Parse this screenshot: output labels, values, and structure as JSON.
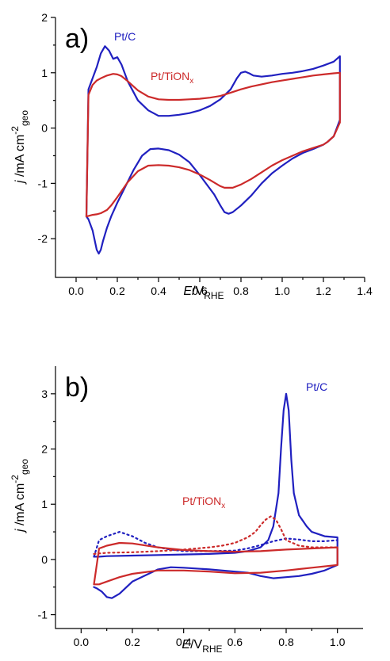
{
  "chart_data": [
    {
      "type": "line",
      "panel_label": "a)",
      "xlabel_main": "E",
      "xlabel_rest": "/V",
      "xlabel_sub": "RHE",
      "ylabel_main": "j",
      "ylabel_rest": " /mA cm",
      "ylabel_sup": "-2",
      "ylabel_sub": "geo",
      "xlim": [
        -0.1,
        1.4
      ],
      "ylim": [
        -2.7,
        2.0
      ],
      "xticks": [
        0.0,
        0.2,
        0.4,
        0.6,
        0.8,
        1.0,
        1.2,
        1.4
      ],
      "xtick_labels": [
        "0.0",
        "0.2",
        "0.4",
        "0.6",
        "0.8",
        "1.0",
        "1.2",
        "1.4"
      ],
      "yticks": [
        -2,
        -1,
        0,
        1,
        2
      ],
      "ytick_labels": [
        "-2",
        "-1",
        "0",
        "1",
        "2"
      ],
      "series": [
        {
          "name": "Pt/C",
          "name_sub": "",
          "color": "#2020c0",
          "dash": "solid",
          "x": [
            0.05,
            0.06,
            0.08,
            0.1,
            0.12,
            0.14,
            0.16,
            0.18,
            0.2,
            0.22,
            0.25,
            0.3,
            0.35,
            0.4,
            0.45,
            0.5,
            0.55,
            0.6,
            0.65,
            0.7,
            0.75,
            0.78,
            0.8,
            0.82,
            0.84,
            0.86,
            0.9,
            0.95,
            1.0,
            1.05,
            1.1,
            1.15,
            1.2,
            1.25,
            1.28,
            1.28,
            1.25,
            1.22,
            1.2,
            1.15,
            1.1,
            1.05,
            1.0,
            0.95,
            0.9,
            0.85,
            0.8,
            0.76,
            0.74,
            0.72,
            0.7,
            0.67,
            0.64,
            0.6,
            0.55,
            0.5,
            0.45,
            0.4,
            0.36,
            0.32,
            0.28,
            0.24,
            0.2,
            0.17,
            0.15,
            0.13,
            0.12,
            0.11,
            0.1,
            0.08,
            0.06,
            0.05
          ],
          "y": [
            -1.6,
            0.7,
            0.9,
            1.1,
            1.35,
            1.48,
            1.4,
            1.25,
            1.28,
            1.15,
            0.85,
            0.5,
            0.32,
            0.22,
            0.22,
            0.24,
            0.27,
            0.32,
            0.4,
            0.52,
            0.7,
            0.9,
            1.0,
            1.02,
            0.99,
            0.95,
            0.93,
            0.95,
            0.98,
            1.0,
            1.03,
            1.07,
            1.13,
            1.2,
            1.3,
            0.15,
            -0.15,
            -0.25,
            -0.3,
            -0.38,
            -0.45,
            -0.55,
            -0.68,
            -0.82,
            -1.0,
            -1.22,
            -1.4,
            -1.52,
            -1.55,
            -1.52,
            -1.4,
            -1.2,
            -1.05,
            -0.85,
            -0.62,
            -0.48,
            -0.4,
            -0.37,
            -0.38,
            -0.5,
            -0.75,
            -1.05,
            -1.35,
            -1.6,
            -1.8,
            -2.05,
            -2.2,
            -2.27,
            -2.2,
            -1.85,
            -1.65,
            -1.6
          ]
        },
        {
          "name": "Pt/TiON",
          "name_sub": "x",
          "color": "#cc2a2a",
          "dash": "solid",
          "x": [
            0.05,
            0.06,
            0.08,
            0.1,
            0.12,
            0.15,
            0.18,
            0.2,
            0.22,
            0.25,
            0.3,
            0.35,
            0.4,
            0.45,
            0.5,
            0.55,
            0.6,
            0.65,
            0.7,
            0.75,
            0.8,
            0.85,
            0.9,
            0.95,
            1.0,
            1.05,
            1.1,
            1.15,
            1.2,
            1.25,
            1.28,
            1.28,
            1.25,
            1.22,
            1.2,
            1.15,
            1.1,
            1.05,
            1.0,
            0.95,
            0.9,
            0.85,
            0.8,
            0.76,
            0.72,
            0.7,
            0.65,
            0.6,
            0.55,
            0.5,
            0.45,
            0.4,
            0.35,
            0.3,
            0.25,
            0.2,
            0.17,
            0.15,
            0.12,
            0.1,
            0.08,
            0.05
          ],
          "y": [
            -1.6,
            0.6,
            0.78,
            0.86,
            0.9,
            0.95,
            0.98,
            0.97,
            0.94,
            0.85,
            0.68,
            0.57,
            0.52,
            0.51,
            0.51,
            0.52,
            0.53,
            0.55,
            0.58,
            0.64,
            0.7,
            0.75,
            0.79,
            0.83,
            0.86,
            0.89,
            0.92,
            0.95,
            0.97,
            0.99,
            1.0,
            0.1,
            -0.15,
            -0.25,
            -0.3,
            -0.36,
            -0.42,
            -0.5,
            -0.58,
            -0.68,
            -0.8,
            -0.92,
            -1.02,
            -1.08,
            -1.08,
            -1.05,
            -0.94,
            -0.84,
            -0.76,
            -0.71,
            -0.68,
            -0.67,
            -0.68,
            -0.78,
            -0.98,
            -1.25,
            -1.4,
            -1.48,
            -1.54,
            -1.56,
            -1.57,
            -1.6
          ]
        }
      ]
    },
    {
      "type": "line",
      "panel_label": "b)",
      "xlabel_main": "E",
      "xlabel_rest": "/V",
      "xlabel_sub": "RHE",
      "ylabel_main": "j",
      "ylabel_rest": " /mA cm",
      "ylabel_sup": "-2",
      "ylabel_sub": "geo",
      "xlim": [
        -0.1,
        1.1
      ],
      "ylim": [
        -1.25,
        3.5
      ],
      "xticks": [
        0.0,
        0.2,
        0.4,
        0.6,
        0.8,
        1.0
      ],
      "xtick_labels": [
        "0.0",
        "0.2",
        "0.4",
        "0.6",
        "0.8",
        "1.0"
      ],
      "yticks": [
        -1,
        0,
        1,
        2,
        3
      ],
      "ytick_labels": [
        "-1",
        "0",
        "1",
        "2",
        "3"
      ],
      "series": [
        {
          "name": "Pt/C",
          "name_sub": "",
          "color": "#2020c0",
          "dash": "solid",
          "x": [
            0.05,
            0.07,
            0.1,
            0.2,
            0.3,
            0.4,
            0.5,
            0.6,
            0.65,
            0.7,
            0.73,
            0.75,
            0.77,
            0.78,
            0.79,
            0.8,
            0.81,
            0.82,
            0.83,
            0.85,
            0.88,
            0.9,
            0.95,
            1.0,
            1.0,
            0.95,
            0.9,
            0.85,
            0.8,
            0.75,
            0.7,
            0.65,
            0.6,
            0.5,
            0.4,
            0.35,
            0.3,
            0.2,
            0.15,
            0.12,
            0.1,
            0.08,
            0.06,
            0.05
          ],
          "y": [
            0.05,
            0.05,
            0.06,
            0.07,
            0.08,
            0.09,
            0.1,
            0.12,
            0.15,
            0.22,
            0.35,
            0.6,
            1.2,
            2.0,
            2.7,
            3.0,
            2.7,
            1.8,
            1.2,
            0.8,
            0.6,
            0.5,
            0.42,
            0.4,
            -0.1,
            -0.2,
            -0.26,
            -0.3,
            -0.32,
            -0.34,
            -0.3,
            -0.24,
            -0.22,
            -0.18,
            -0.15,
            -0.14,
            -0.18,
            -0.4,
            -0.62,
            -0.7,
            -0.68,
            -0.58,
            -0.52,
            -0.5
          ]
        },
        {
          "name": "Pt/C dotted",
          "name_sub": "",
          "color": "#2020c0",
          "dash": "dotted",
          "x": [
            0.05,
            0.07,
            0.1,
            0.15,
            0.2,
            0.25,
            0.3,
            0.35,
            0.4,
            0.5,
            0.6,
            0.65,
            0.7,
            0.75,
            0.8,
            0.85,
            0.9,
            0.95,
            1.0
          ],
          "y": [
            0.05,
            0.35,
            0.42,
            0.5,
            0.42,
            0.3,
            0.22,
            0.18,
            0.15,
            0.15,
            0.16,
            0.2,
            0.26,
            0.33,
            0.38,
            0.36,
            0.33,
            0.33,
            0.35
          ]
        },
        {
          "name": "Pt/TiON",
          "name_sub": "x",
          "color": "#cc2a2a",
          "dash": "solid",
          "x": [
            0.05,
            0.07,
            0.1,
            0.15,
            0.2,
            0.3,
            0.4,
            0.5,
            0.6,
            0.7,
            0.8,
            0.9,
            1.0,
            1.0,
            0.9,
            0.8,
            0.7,
            0.6,
            0.5,
            0.4,
            0.3,
            0.2,
            0.15,
            0.1,
            0.07,
            0.05
          ],
          "y": [
            -0.45,
            0.2,
            0.25,
            0.3,
            0.29,
            0.22,
            0.17,
            0.15,
            0.14,
            0.15,
            0.18,
            0.2,
            0.22,
            -0.1,
            -0.15,
            -0.2,
            -0.24,
            -0.25,
            -0.22,
            -0.2,
            -0.2,
            -0.26,
            -0.32,
            -0.4,
            -0.45,
            -0.45
          ]
        },
        {
          "name": "Pt/TiON dotted",
          "name_sub": "",
          "color": "#cc2a2a",
          "dash": "dotted",
          "x": [
            0.05,
            0.1,
            0.2,
            0.3,
            0.4,
            0.5,
            0.55,
            0.6,
            0.65,
            0.68,
            0.7,
            0.72,
            0.74,
            0.76,
            0.78,
            0.8,
            0.85,
            0.9,
            1.0
          ],
          "y": [
            0.1,
            0.12,
            0.13,
            0.15,
            0.18,
            0.22,
            0.25,
            0.3,
            0.4,
            0.5,
            0.62,
            0.72,
            0.78,
            0.72,
            0.55,
            0.35,
            0.25,
            0.22,
            0.22
          ]
        }
      ]
    }
  ]
}
